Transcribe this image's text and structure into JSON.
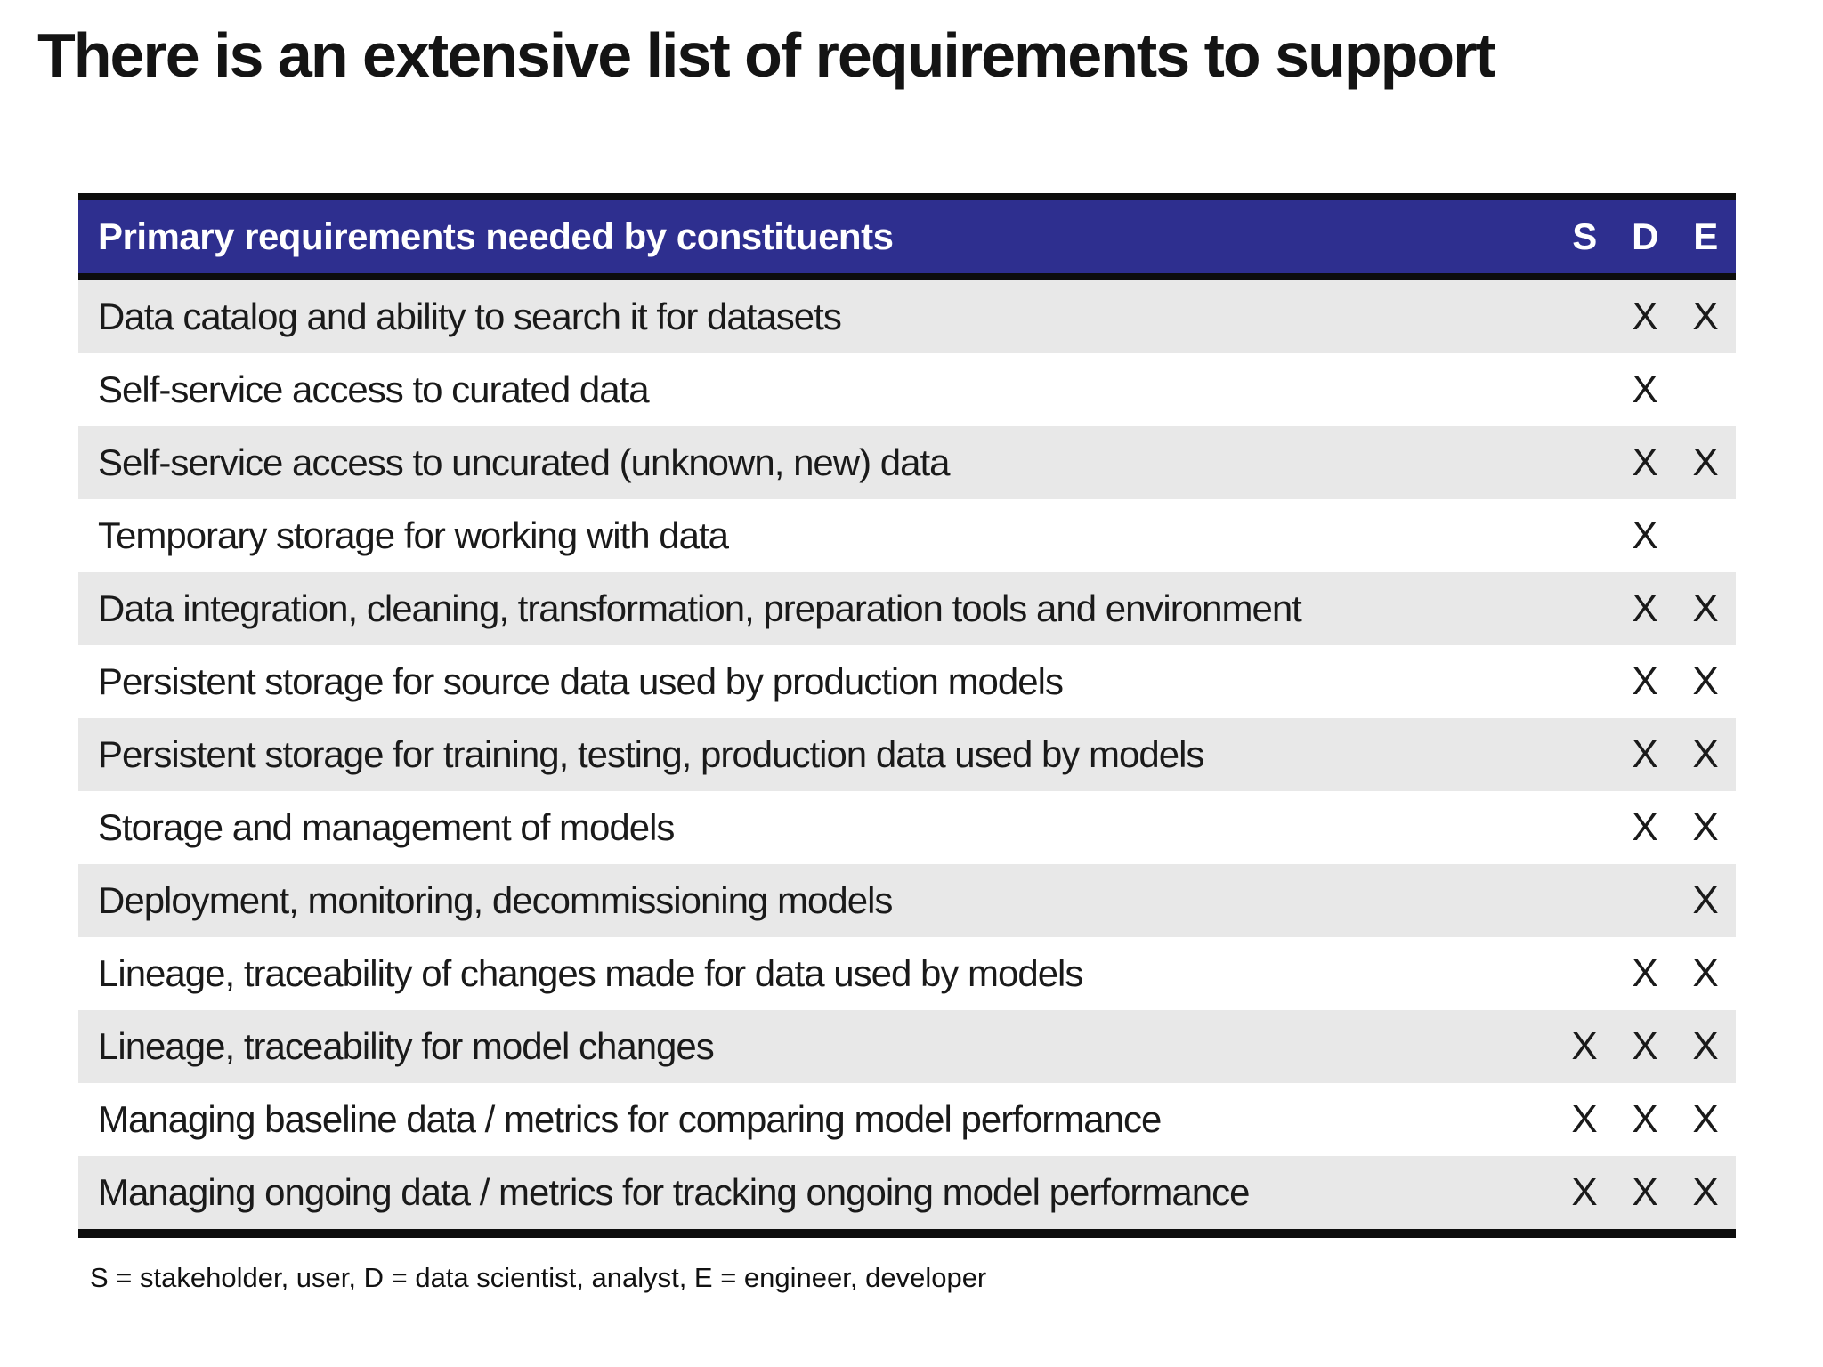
{
  "title": "There is an extensive list of requirements to support",
  "table": {
    "header_label": "Primary requirements needed by constituents",
    "columns": [
      "S",
      "D",
      "E"
    ],
    "x_mark": "X",
    "rows": [
      {
        "label": "Data catalog and ability to search it for datasets",
        "marks": [
          "D",
          "E"
        ]
      },
      {
        "label": "Self-service access to curated data",
        "marks": [
          "D"
        ]
      },
      {
        "label": "Self-service access to uncurated (unknown, new) data",
        "marks": [
          "D",
          "E"
        ]
      },
      {
        "label": "Temporary storage for working with data",
        "marks": [
          "D"
        ]
      },
      {
        "label": "Data integration, cleaning, transformation, preparation tools and environment",
        "marks": [
          "D",
          "E"
        ]
      },
      {
        "label": "Persistent storage for source data used by production models",
        "marks": [
          "D",
          "E"
        ]
      },
      {
        "label": "Persistent storage for training, testing, production data used by models",
        "marks": [
          "D",
          "E"
        ]
      },
      {
        "label": "Storage and management of models",
        "marks": [
          "D",
          "E"
        ]
      },
      {
        "label": "Deployment, monitoring, decommissioning models",
        "marks": [
          "E"
        ]
      },
      {
        "label": "Lineage, traceability of changes made for data used by models",
        "marks": [
          "D",
          "E"
        ]
      },
      {
        "label": "Lineage, traceability for model changes",
        "marks": [
          "S",
          "D",
          "E"
        ]
      },
      {
        "label": "Managing baseline data / metrics for comparing model performance",
        "marks": [
          "S",
          "D",
          "E"
        ]
      },
      {
        "label": "Managing ongoing data / metrics for tracking ongoing model performance",
        "marks": [
          "S",
          "D",
          "E"
        ]
      }
    ]
  },
  "footnote": "S = stakeholder, user, D = data scientist, analyst, E = engineer, developer",
  "colors": {
    "header_bg": "#2e2f8f",
    "header_text": "#ffffff",
    "row_bg": "#ffffff",
    "row_alt_bg": "#e8e8e8",
    "border": "#0d0d0d",
    "text": "#1a1a1a"
  }
}
